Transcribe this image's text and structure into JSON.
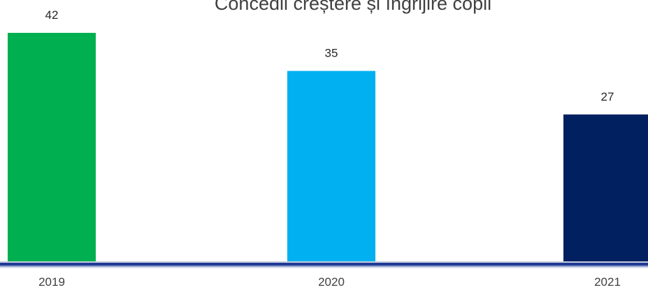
{
  "chart_data": {
    "type": "bar",
    "title": "Concedii creștere și îngrijire copii",
    "categories": [
      "2019",
      "2020",
      "2021"
    ],
    "values": [
      42,
      35,
      27
    ],
    "colors": [
      "#00b050",
      "#00b0f0",
      "#002060"
    ],
    "axis_color": "#1f3a93",
    "ylim": [
      0,
      42
    ],
    "grid": false,
    "legend": "none"
  }
}
